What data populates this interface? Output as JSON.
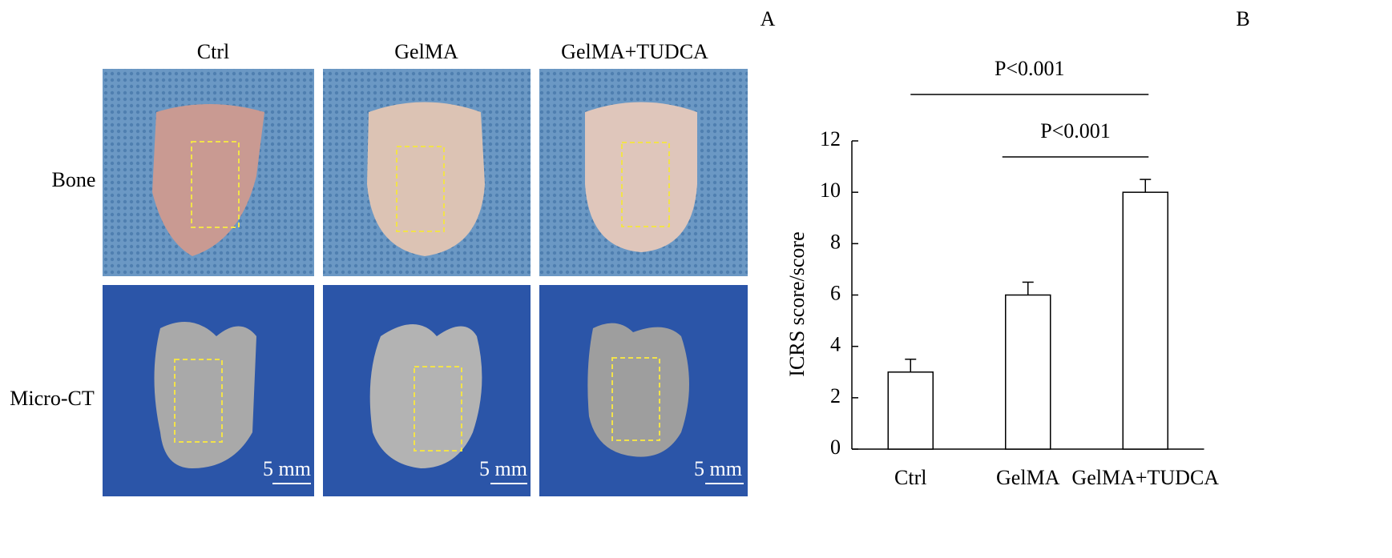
{
  "panel_a": {
    "label": "A",
    "columns": [
      "Ctrl",
      "GelMA",
      "GelMA+TUDCA"
    ],
    "rows": [
      "Bone",
      "Micro-CT"
    ],
    "scale_bars": [
      "5 mm",
      "5 mm",
      "5 mm"
    ]
  },
  "chart_data": {
    "type": "bar",
    "panel_label": "B",
    "y_label": "ICRS score/score",
    "categories": [
      "Ctrl",
      "GelMA",
      "GelMA+TUDCA"
    ],
    "values": [
      3,
      6,
      10
    ],
    "errors": [
      0.5,
      0.5,
      0.5
    ],
    "color": "#ffffff",
    "ylim": [
      0,
      12
    ],
    "yticks": [
      0,
      2,
      4,
      6,
      8,
      10,
      12
    ],
    "annotations": [
      {
        "text": "P<0.001",
        "between": [
          0,
          2
        ]
      },
      {
        "text": "P<0.001",
        "between": [
          1,
          2
        ]
      }
    ]
  }
}
